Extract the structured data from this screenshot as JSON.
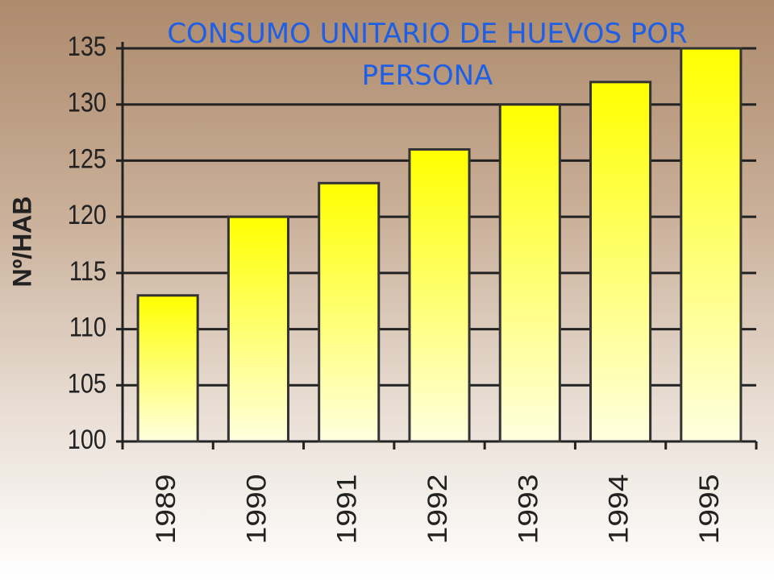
{
  "chart_data": {
    "type": "bar",
    "title": "CONSUMO UNITARIO DE HUEVOS POR PERSONA",
    "y_label": "Nº/HAB",
    "categories": [
      "1989",
      "1990",
      "1991",
      "1992",
      "1993",
      "1994",
      "1995"
    ],
    "values": [
      113,
      120,
      123,
      126,
      130,
      132,
      135
    ],
    "color": "#ffff00",
    "ylim": [
      100,
      135
    ],
    "yticks": [
      100,
      105,
      110,
      115,
      120,
      125,
      130,
      135
    ],
    "grid": true
  }
}
